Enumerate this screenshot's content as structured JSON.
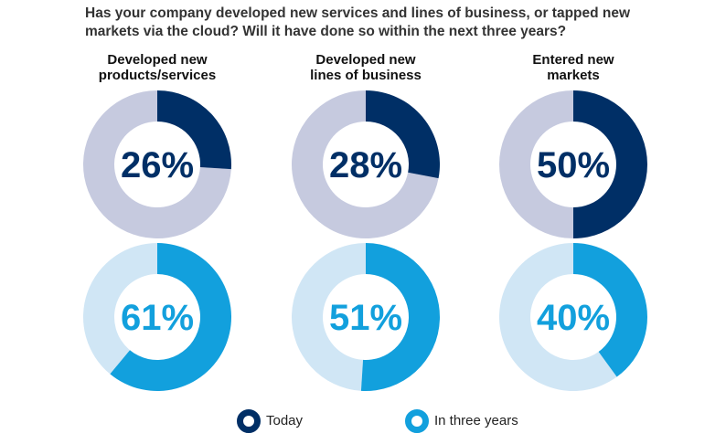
{
  "title_lines": [
    "Has your company developed new services and lines of business, or tapped new",
    "markets via the cloud? Will it have done so within the next three years?"
  ],
  "colors": {
    "today_fill": "#002f66",
    "today_track": "#c6cadf",
    "future_fill": "#12a0dd",
    "future_track": "#d0e6f5"
  },
  "chart_data": {
    "type": "pie",
    "title": "Has your company developed new services and lines of business, or tapped new markets via the cloud? Will it have done so within the next three years?",
    "categories": [
      [
        "Developed new",
        "products/services"
      ],
      [
        "Developed new",
        "lines of business"
      ],
      [
        "Entered new",
        "markets"
      ]
    ],
    "series": [
      {
        "name": "Today",
        "values": [
          26,
          28,
          50
        ],
        "labels": [
          "26%",
          "28%",
          "50%"
        ]
      },
      {
        "name": "In three years",
        "values": [
          61,
          51,
          40
        ],
        "labels": [
          "61%",
          "51%",
          "40%"
        ]
      }
    ],
    "legend": [
      "Today",
      "In three years"
    ],
    "legend_position": "bottom"
  }
}
